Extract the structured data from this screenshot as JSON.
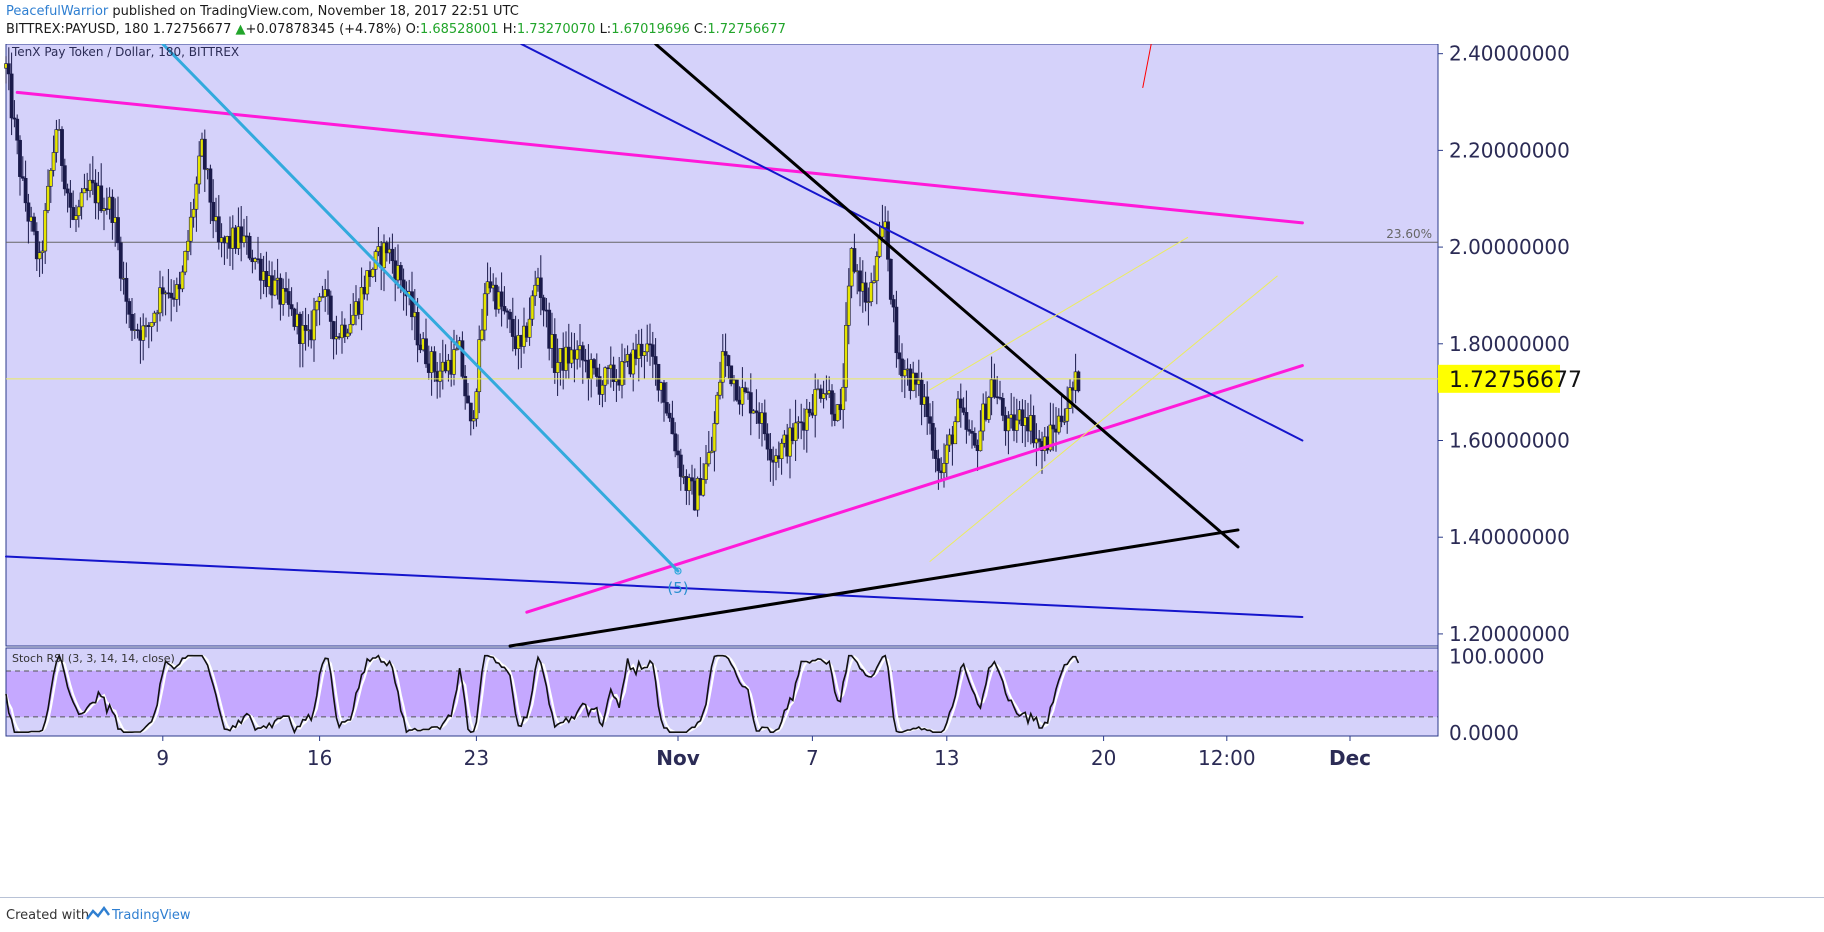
{
  "header": {
    "author": "PeacefulWarrior",
    "published": "published on TradingView.com, November 18, 2017 22:51 UTC",
    "symbol": "BITTREX:PAYUSD, 180",
    "last": "1.72756677",
    "up_arrow": "▲",
    "change": "+0.07878345 (+4.78%)",
    "open_label": "O:",
    "open": "1.68528001",
    "high_label": "H:",
    "high": "1.73270070",
    "low_label": "L:",
    "low": "1.67019696",
    "close_label": "C:",
    "close": "1.72756677"
  },
  "footer": {
    "created_with": "Created with",
    "brand": "TradingView"
  },
  "colors": {
    "chart_bg": "#d5d2fa",
    "candle_up": "#e6e600",
    "candle_down": "#1a1a4a",
    "magenta": "#ff1ad9",
    "cyan": "#33aadd",
    "blue": "#1515cc",
    "black": "#000000",
    "yellow": "#ecec60",
    "rsi_band": "#c5a8ff",
    "price_tag": "#ffff00"
  },
  "chart_data": [
    {
      "type": "candlestick",
      "title": "TenX Pay Token / Dollar, 180, BITTREX",
      "x_tick_labels": [
        "9",
        "16",
        "23",
        "Nov",
        "7",
        "13",
        "20",
        "12:00",
        "Dec"
      ],
      "y_tick_labels": [
        "2.40000000",
        "2.20000000",
        "2.00000000",
        "1.80000000",
        "1.60000000",
        "1.40000000",
        "1.20000000"
      ],
      "ylim": [
        1.175,
        2.42
      ],
      "last_price": "1.72756677",
      "fib_label": "23.60%",
      "fib_level": 2.01,
      "wave_label": "(5)",
      "grid": false,
      "series": [
        {
          "name": "PAYUSD",
          "anchors": [
            [
              "2017-10-02 00:00",
              2.37
            ],
            [
              "2017-10-02 18:00",
              2.12
            ],
            [
              "2017-10-03 12:00",
              1.96
            ],
            [
              "2017-10-04 06:00",
              2.25
            ],
            [
              "2017-10-05 00:00",
              2.05
            ],
            [
              "2017-10-05 18:00",
              2.12
            ],
            [
              "2017-10-06 18:00",
              2.08
            ],
            [
              "2017-10-07 12:00",
              1.85
            ],
            [
              "2017-10-08 06:00",
              1.82
            ],
            [
              "2017-10-09 00:00",
              1.92
            ],
            [
              "2017-10-09 18:00",
              1.9
            ],
            [
              "2017-10-10 18:00",
              2.2
            ],
            [
              "2017-10-11 12:00",
              2.0
            ],
            [
              "2017-10-12 12:00",
              2.02
            ],
            [
              "2017-10-13 12:00",
              1.95
            ],
            [
              "2017-10-14 12:00",
              1.88
            ],
            [
              "2017-10-15 12:00",
              1.8
            ],
            [
              "2017-10-16 00:00",
              1.92
            ],
            [
              "2017-10-16 18:00",
              1.82
            ],
            [
              "2017-10-17 12:00",
              1.86
            ],
            [
              "2017-10-18 06:00",
              1.95
            ],
            [
              "2017-10-19 00:00",
              2.0
            ],
            [
              "2017-10-19 18:00",
              1.92
            ],
            [
              "2017-10-20 12:00",
              1.8
            ],
            [
              "2017-10-21 06:00",
              1.74
            ],
            [
              "2017-10-22 06:00",
              1.78
            ],
            [
              "2017-10-22 18:00",
              1.62
            ],
            [
              "2017-10-23 12:00",
              1.94
            ],
            [
              "2017-10-24 06:00",
              1.86
            ],
            [
              "2017-10-25 00:00",
              1.78
            ],
            [
              "2017-10-25 18:00",
              1.94
            ],
            [
              "2017-10-26 12:00",
              1.76
            ],
            [
              "2017-10-27 12:00",
              1.78
            ],
            [
              "2017-10-28 12:00",
              1.72
            ],
            [
              "2017-10-29 12:00",
              1.74
            ],
            [
              "2017-10-30 12:00",
              1.8
            ],
            [
              "2017-10-31 06:00",
              1.72
            ],
            [
              "2017-11-01 06:00",
              1.52
            ],
            [
              "2017-11-01 18:00",
              1.48
            ],
            [
              "2017-11-02 12:00",
              1.58
            ],
            [
              "2017-11-03 00:00",
              1.78
            ],
            [
              "2017-11-03 18:00",
              1.7
            ],
            [
              "2017-11-04 12:00",
              1.67
            ],
            [
              "2017-11-05 06:00",
              1.57
            ],
            [
              "2017-11-06 00:00",
              1.6
            ],
            [
              "2017-11-06 18:00",
              1.66
            ],
            [
              "2017-11-07 12:00",
              1.72
            ],
            [
              "2017-11-08 06:00",
              1.64
            ],
            [
              "2017-11-08 18:00",
              1.98
            ],
            [
              "2017-11-09 12:00",
              1.88
            ],
            [
              "2017-11-10 06:00",
              2.05
            ],
            [
              "2017-11-10 18:00",
              1.78
            ],
            [
              "2017-11-11 12:00",
              1.72
            ],
            [
              "2017-11-12 00:00",
              1.68
            ],
            [
              "2017-11-12 18:00",
              1.53
            ],
            [
              "2017-11-13 12:00",
              1.66
            ],
            [
              "2017-11-14 06:00",
              1.58
            ],
            [
              "2017-11-15 00:00",
              1.72
            ],
            [
              "2017-11-15 18:00",
              1.62
            ],
            [
              "2017-11-16 12:00",
              1.66
            ],
            [
              "2017-11-17 06:00",
              1.58
            ],
            [
              "2017-11-18 00:00",
              1.64
            ],
            [
              "2017-11-18 21:00",
              1.7275
            ]
          ]
        }
      ],
      "trendlines": [
        {
          "name": "upper-magenta",
          "color": "magenta",
          "width": 3,
          "points": [
            [
              "2017-10-02 12:00",
              2.32
            ],
            [
              "2017-11-28 21:00",
              2.05
            ]
          ]
        },
        {
          "name": "lower-magenta",
          "color": "magenta",
          "width": 3,
          "points": [
            [
              "2017-10-25 06:00",
              1.245
            ],
            [
              "2017-11-28 21:00",
              1.755
            ]
          ]
        },
        {
          "name": "cyan-down",
          "color": "cyan",
          "width": 3,
          "points": [
            [
              "2017-10-09 00:00",
              2.42
            ],
            [
              "2017-11-01 00:00",
              1.33
            ]
          ]
        },
        {
          "name": "blue-upper",
          "color": "blue",
          "width": 2,
          "points": [
            [
              "2017-10-25 00:00",
              2.42
            ],
            [
              "2017-11-28 21:00",
              1.6
            ]
          ]
        },
        {
          "name": "blue-lower",
          "color": "blue",
          "width": 2,
          "points": [
            [
              "2017-10-02 00:00",
              1.36
            ],
            [
              "2017-11-28 21:00",
              1.235
            ]
          ]
        },
        {
          "name": "black-down",
          "color": "black",
          "width": 3,
          "points": [
            [
              "2017-10-31 00:00",
              2.42
            ],
            [
              "2017-11-26 00:00",
              1.38
            ]
          ]
        },
        {
          "name": "black-up",
          "color": "black",
          "width": 3,
          "points": [
            [
              "2017-10-24 12:00",
              1.175
            ],
            [
              "2017-11-26 00:00",
              1.415
            ]
          ]
        },
        {
          "name": "yellow-channel-1",
          "color": "yellow",
          "width": 1,
          "points": [
            [
              "2017-11-12 06:00",
              1.705
            ],
            [
              "2017-11-23 18:00",
              2.02
            ]
          ]
        },
        {
          "name": "yellow-channel-2",
          "color": "yellow",
          "width": 1,
          "points": [
            [
              "2017-11-12 06:00",
              1.35
            ],
            [
              "2017-11-27 18:00",
              1.94
            ]
          ]
        },
        {
          "name": "red-mark",
          "color": "red",
          "width": 1,
          "points": [
            [
              "2017-11-21 18:00",
              2.33
            ],
            [
              "2017-11-22 03:00",
              2.42
            ]
          ]
        }
      ]
    },
    {
      "type": "line",
      "title": "Stoch RSI (3, 3, 14, 14, close)",
      "y_tick_labels": [
        "100.0000",
        "0.0000"
      ],
      "ylim": [
        -5,
        110
      ],
      "bands": [
        20,
        80
      ]
    }
  ]
}
